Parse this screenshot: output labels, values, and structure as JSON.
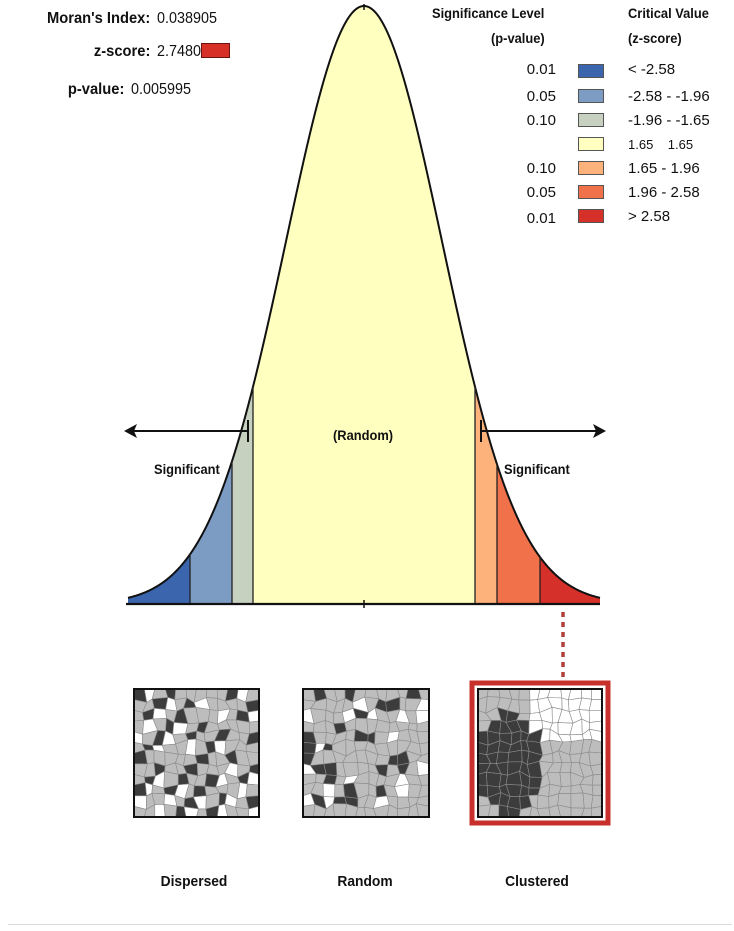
{
  "stats": {
    "morans_index_label": "Moran's Index:",
    "morans_index_value": "0.038905",
    "z_score_label": "z-score:",
    "z_score_value": "2.748057",
    "p_value_label": "p-value:",
    "p_value_value": "0.005995",
    "z_score_swatch_color": "#d73027"
  },
  "legend": {
    "significance_header_line1": "Significance Level",
    "significance_header_line2": "(p-value)",
    "critical_header_line1": "Critical Value",
    "critical_header_line2": "(z-score)",
    "rows": [
      {
        "p": "0.01",
        "z": "< -2.58",
        "color": "#3b66ad"
      },
      {
        "p": "0.05",
        "z": "-2.58 - -1.96",
        "color": "#7d9cc4"
      },
      {
        "p": "0.10",
        "z": "-1.96 - -1.65",
        "color": "#c6d1c0"
      },
      {
        "p": "",
        "z": "1.65    1.65",
        "color": "#ffffbf"
      },
      {
        "p": "0.10",
        "z": "1.65 - 1.96",
        "color": "#fdb27c"
      },
      {
        "p": "0.05",
        "z": "1.96 - 2.58",
        "color": "#f0714a"
      },
      {
        "p": "0.01",
        "z": "> 2.58",
        "color": "#d6302a"
      }
    ]
  },
  "curve": {
    "random_label": "(Random)",
    "significant_left_label": "Significant",
    "significant_right_label": "Significant",
    "region_colors": [
      "#3b66ad",
      "#7d9cc4",
      "#c6d1c0",
      "#ffffbf",
      "#fdb27c",
      "#f0714a",
      "#d6302a"
    ]
  },
  "patterns": {
    "dispersed_caption": "Dispersed",
    "random_caption": "Random",
    "clustered_caption": "Clustered",
    "highlight_color": "#c8302c"
  }
}
